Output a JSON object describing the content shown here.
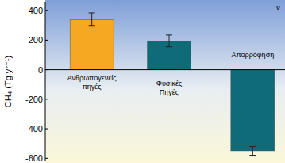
{
  "chart_data": {
    "type": "bar",
    "y_label": "CH₄ (Tg yr⁻¹)",
    "annotation": "v",
    "categories": [
      "Ανθρωπογενείς πηγές",
      "Φυσικές Πηγές",
      "Απορρόφηση"
    ],
    "values": [
      340,
      195,
      -550
    ],
    "errors": [
      45,
      40,
      30
    ],
    "colors": [
      "#f7a823",
      "#0f6b78",
      "#0f6b78"
    ],
    "ylim": [
      -620,
      460
    ],
    "yticks": [
      -600,
      -400,
      -200,
      0,
      200,
      400
    ],
    "grid": false
  }
}
